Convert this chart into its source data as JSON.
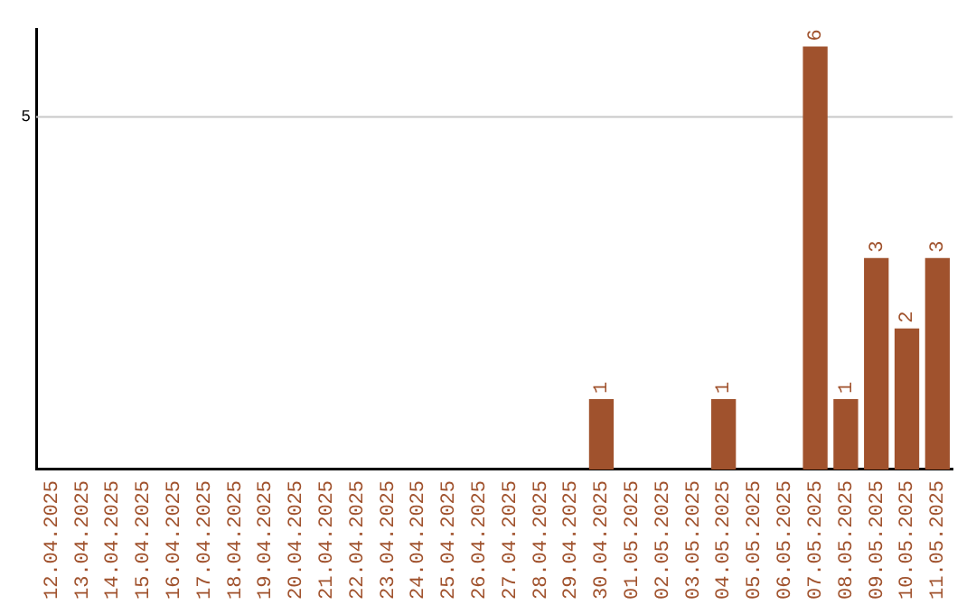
{
  "chart_data": {
    "type": "bar",
    "categories": [
      "12.04.2025",
      "13.04.2025",
      "14.04.2025",
      "15.04.2025",
      "16.04.2025",
      "17.04.2025",
      "18.04.2025",
      "19.04.2025",
      "20.04.2025",
      "21.04.2025",
      "22.04.2025",
      "23.04.2025",
      "24.04.2025",
      "25.04.2025",
      "26.04.2025",
      "27.04.2025",
      "28.04.2025",
      "29.04.2025",
      "30.04.2025",
      "01.05.2025",
      "02.05.2025",
      "03.05.2025",
      "04.05.2025",
      "05.05.2025",
      "06.05.2025",
      "07.05.2025",
      "08.05.2025",
      "09.05.2025",
      "10.05.2025",
      "11.05.2025"
    ],
    "values": [
      null,
      null,
      null,
      null,
      null,
      null,
      null,
      null,
      null,
      null,
      null,
      null,
      null,
      null,
      null,
      null,
      null,
      null,
      1,
      null,
      null,
      null,
      1,
      null,
      null,
      6,
      1,
      3,
      2,
      3
    ],
    "value_labels": [
      null,
      null,
      null,
      null,
      null,
      null,
      null,
      null,
      null,
      null,
      null,
      null,
      null,
      null,
      null,
      null,
      null,
      null,
      "1",
      null,
      null,
      null,
      "1",
      null,
      null,
      "6",
      "1",
      "3",
      "2",
      "3"
    ],
    "ref_lines": [
      {
        "axis": "y",
        "value": 5,
        "label": "5",
        "color": "#c8c8c8"
      }
    ],
    "color": "#a0522d",
    "ylim": [
      0,
      6.25
    ],
    "legend": false
  }
}
